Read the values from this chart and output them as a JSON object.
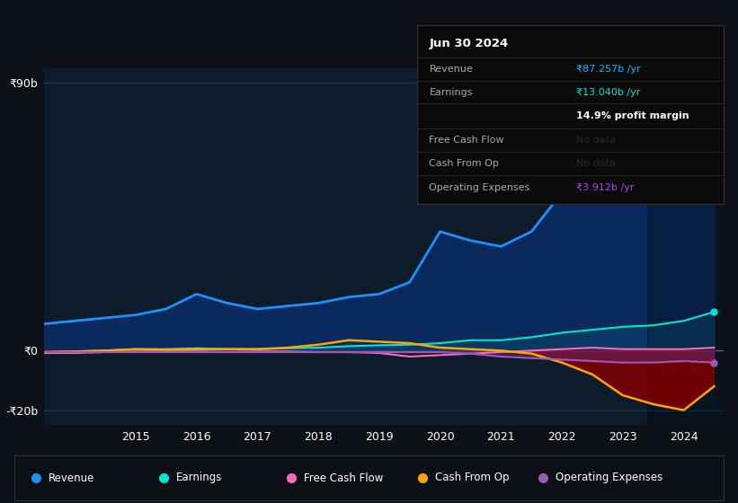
{
  "bg_color": "#0d1117",
  "plot_bg_color": "#0d1b2a",
  "grid_color": "#1e3a5f",
  "title_date": "Jun 30 2024",
  "info_box_rows": [
    {
      "label": "Revenue",
      "value": "₹87.257b /yr",
      "value_color": "#00bfff",
      "dim": false
    },
    {
      "label": "Earnings",
      "value": "₹13.040b /yr",
      "value_color": "#00e5cc",
      "dim": false
    },
    {
      "label": "",
      "value": "14.9% profit margin",
      "value_color": "#ffffff",
      "dim": false
    },
    {
      "label": "Free Cash Flow",
      "value": "No data",
      "value_color": "#555555",
      "dim": true
    },
    {
      "label": "Cash From Op",
      "value": "No data",
      "value_color": "#555555",
      "dim": true
    },
    {
      "label": "Operating Expenses",
      "value": "₹3.912b /yr",
      "value_color": "#aa44ff",
      "dim": false
    }
  ],
  "ylim": [
    -25,
    95
  ],
  "yticks": [
    -20,
    0,
    90
  ],
  "ytick_labels": [
    "-₹20b",
    "₹0",
    "₹90b"
  ],
  "year_start": 2013.5,
  "year_end": 2024.65,
  "xtick_years": [
    2015,
    2016,
    2017,
    2018,
    2019,
    2020,
    2021,
    2022,
    2023,
    2024
  ],
  "zero_line_color": "#888888",
  "revenue_color": "#1e90ff",
  "revenue_fill_color": "#0a2a5e",
  "earnings_color": "#00e5cc",
  "freecash_color": "#ff69b4",
  "cashfromop_color": "#ffa500",
  "opex_color": "#9b59b6",
  "legend_entries": [
    {
      "label": "Revenue",
      "color": "#1e90ff"
    },
    {
      "label": "Earnings",
      "color": "#00e5cc"
    },
    {
      "label": "Free Cash Flow",
      "color": "#ff69b4"
    },
    {
      "label": "Cash From Op",
      "color": "#ffa500"
    },
    {
      "label": "Operating Expenses",
      "color": "#9b59b6"
    }
  ],
  "revenue_x": [
    2013.5,
    2014.0,
    2014.5,
    2015.0,
    2015.5,
    2016.0,
    2016.5,
    2017.0,
    2017.5,
    2018.0,
    2018.5,
    2019.0,
    2019.5,
    2020.0,
    2020.5,
    2021.0,
    2021.5,
    2022.0,
    2022.5,
    2023.0,
    2023.5,
    2024.0,
    2024.5
  ],
  "revenue_y": [
    9,
    10,
    11,
    12,
    14,
    19,
    16,
    14,
    15,
    16,
    18,
    19,
    23,
    40,
    37,
    35,
    40,
    53,
    65,
    72,
    72,
    82,
    90
  ],
  "earnings_x": [
    2013.5,
    2014.0,
    2014.5,
    2015.0,
    2015.5,
    2016.0,
    2016.5,
    2017.0,
    2017.5,
    2018.0,
    2018.5,
    2019.0,
    2019.5,
    2020.0,
    2020.5,
    2021.0,
    2021.5,
    2022.0,
    2022.5,
    2023.0,
    2023.5,
    2024.0,
    2024.5
  ],
  "earnings_y": [
    -0.5,
    -0.3,
    0.0,
    0.5,
    0.5,
    0.8,
    0.5,
    0.5,
    0.8,
    1.0,
    1.5,
    1.8,
    2.0,
    2.5,
    3.5,
    3.5,
    4.5,
    6.0,
    7.0,
    8.0,
    8.5,
    10.0,
    13.0
  ],
  "freecash_x": [
    2013.5,
    2014.0,
    2014.5,
    2015.0,
    2015.5,
    2016.0,
    2016.5,
    2017.0,
    2017.5,
    2018.0,
    2018.5,
    2019.0,
    2019.5,
    2020.0,
    2020.5,
    2021.0,
    2021.5,
    2022.0,
    2022.5,
    2023.0,
    2023.5,
    2024.0,
    2024.5
  ],
  "freecash_y": [
    -0.8,
    -0.8,
    -0.5,
    -0.3,
    -0.3,
    -0.3,
    -0.5,
    -0.3,
    -0.3,
    -0.5,
    -0.5,
    -0.8,
    -2.0,
    -1.5,
    -1.0,
    -0.5,
    0.0,
    0.5,
    1.0,
    0.5,
    0.5,
    0.5,
    1.0
  ],
  "cashfromop_x": [
    2013.5,
    2014.0,
    2014.5,
    2015.0,
    2015.5,
    2016.0,
    2016.5,
    2017.0,
    2017.5,
    2018.0,
    2018.5,
    2019.0,
    2019.5,
    2020.0,
    2020.5,
    2021.0,
    2021.5,
    2022.0,
    2022.5,
    2023.0,
    2023.5,
    2024.0,
    2024.5
  ],
  "cashfromop_y": [
    -0.5,
    -0.3,
    0.0,
    0.5,
    0.3,
    0.5,
    0.5,
    0.5,
    1.0,
    2.0,
    3.5,
    3.0,
    2.5,
    1.0,
    0.5,
    0.0,
    -1.0,
    -4.0,
    -8.0,
    -15.0,
    -18.0,
    -20.0,
    -12.0
  ],
  "opex_x": [
    2013.5,
    2014.0,
    2014.5,
    2015.0,
    2015.5,
    2016.0,
    2016.5,
    2017.0,
    2017.5,
    2018.0,
    2018.5,
    2019.0,
    2019.5,
    2020.0,
    2020.5,
    2021.0,
    2021.5,
    2022.0,
    2022.5,
    2023.0,
    2023.5,
    2024.0,
    2024.5
  ],
  "opex_y": [
    -0.5,
    -0.5,
    -0.5,
    -0.5,
    -0.5,
    -0.5,
    -0.5,
    -0.5,
    -0.5,
    -0.5,
    -0.5,
    -0.5,
    -0.5,
    -0.5,
    -1.0,
    -2.0,
    -2.5,
    -3.0,
    -3.5,
    -4.0,
    -4.0,
    -3.5,
    -4.0
  ]
}
